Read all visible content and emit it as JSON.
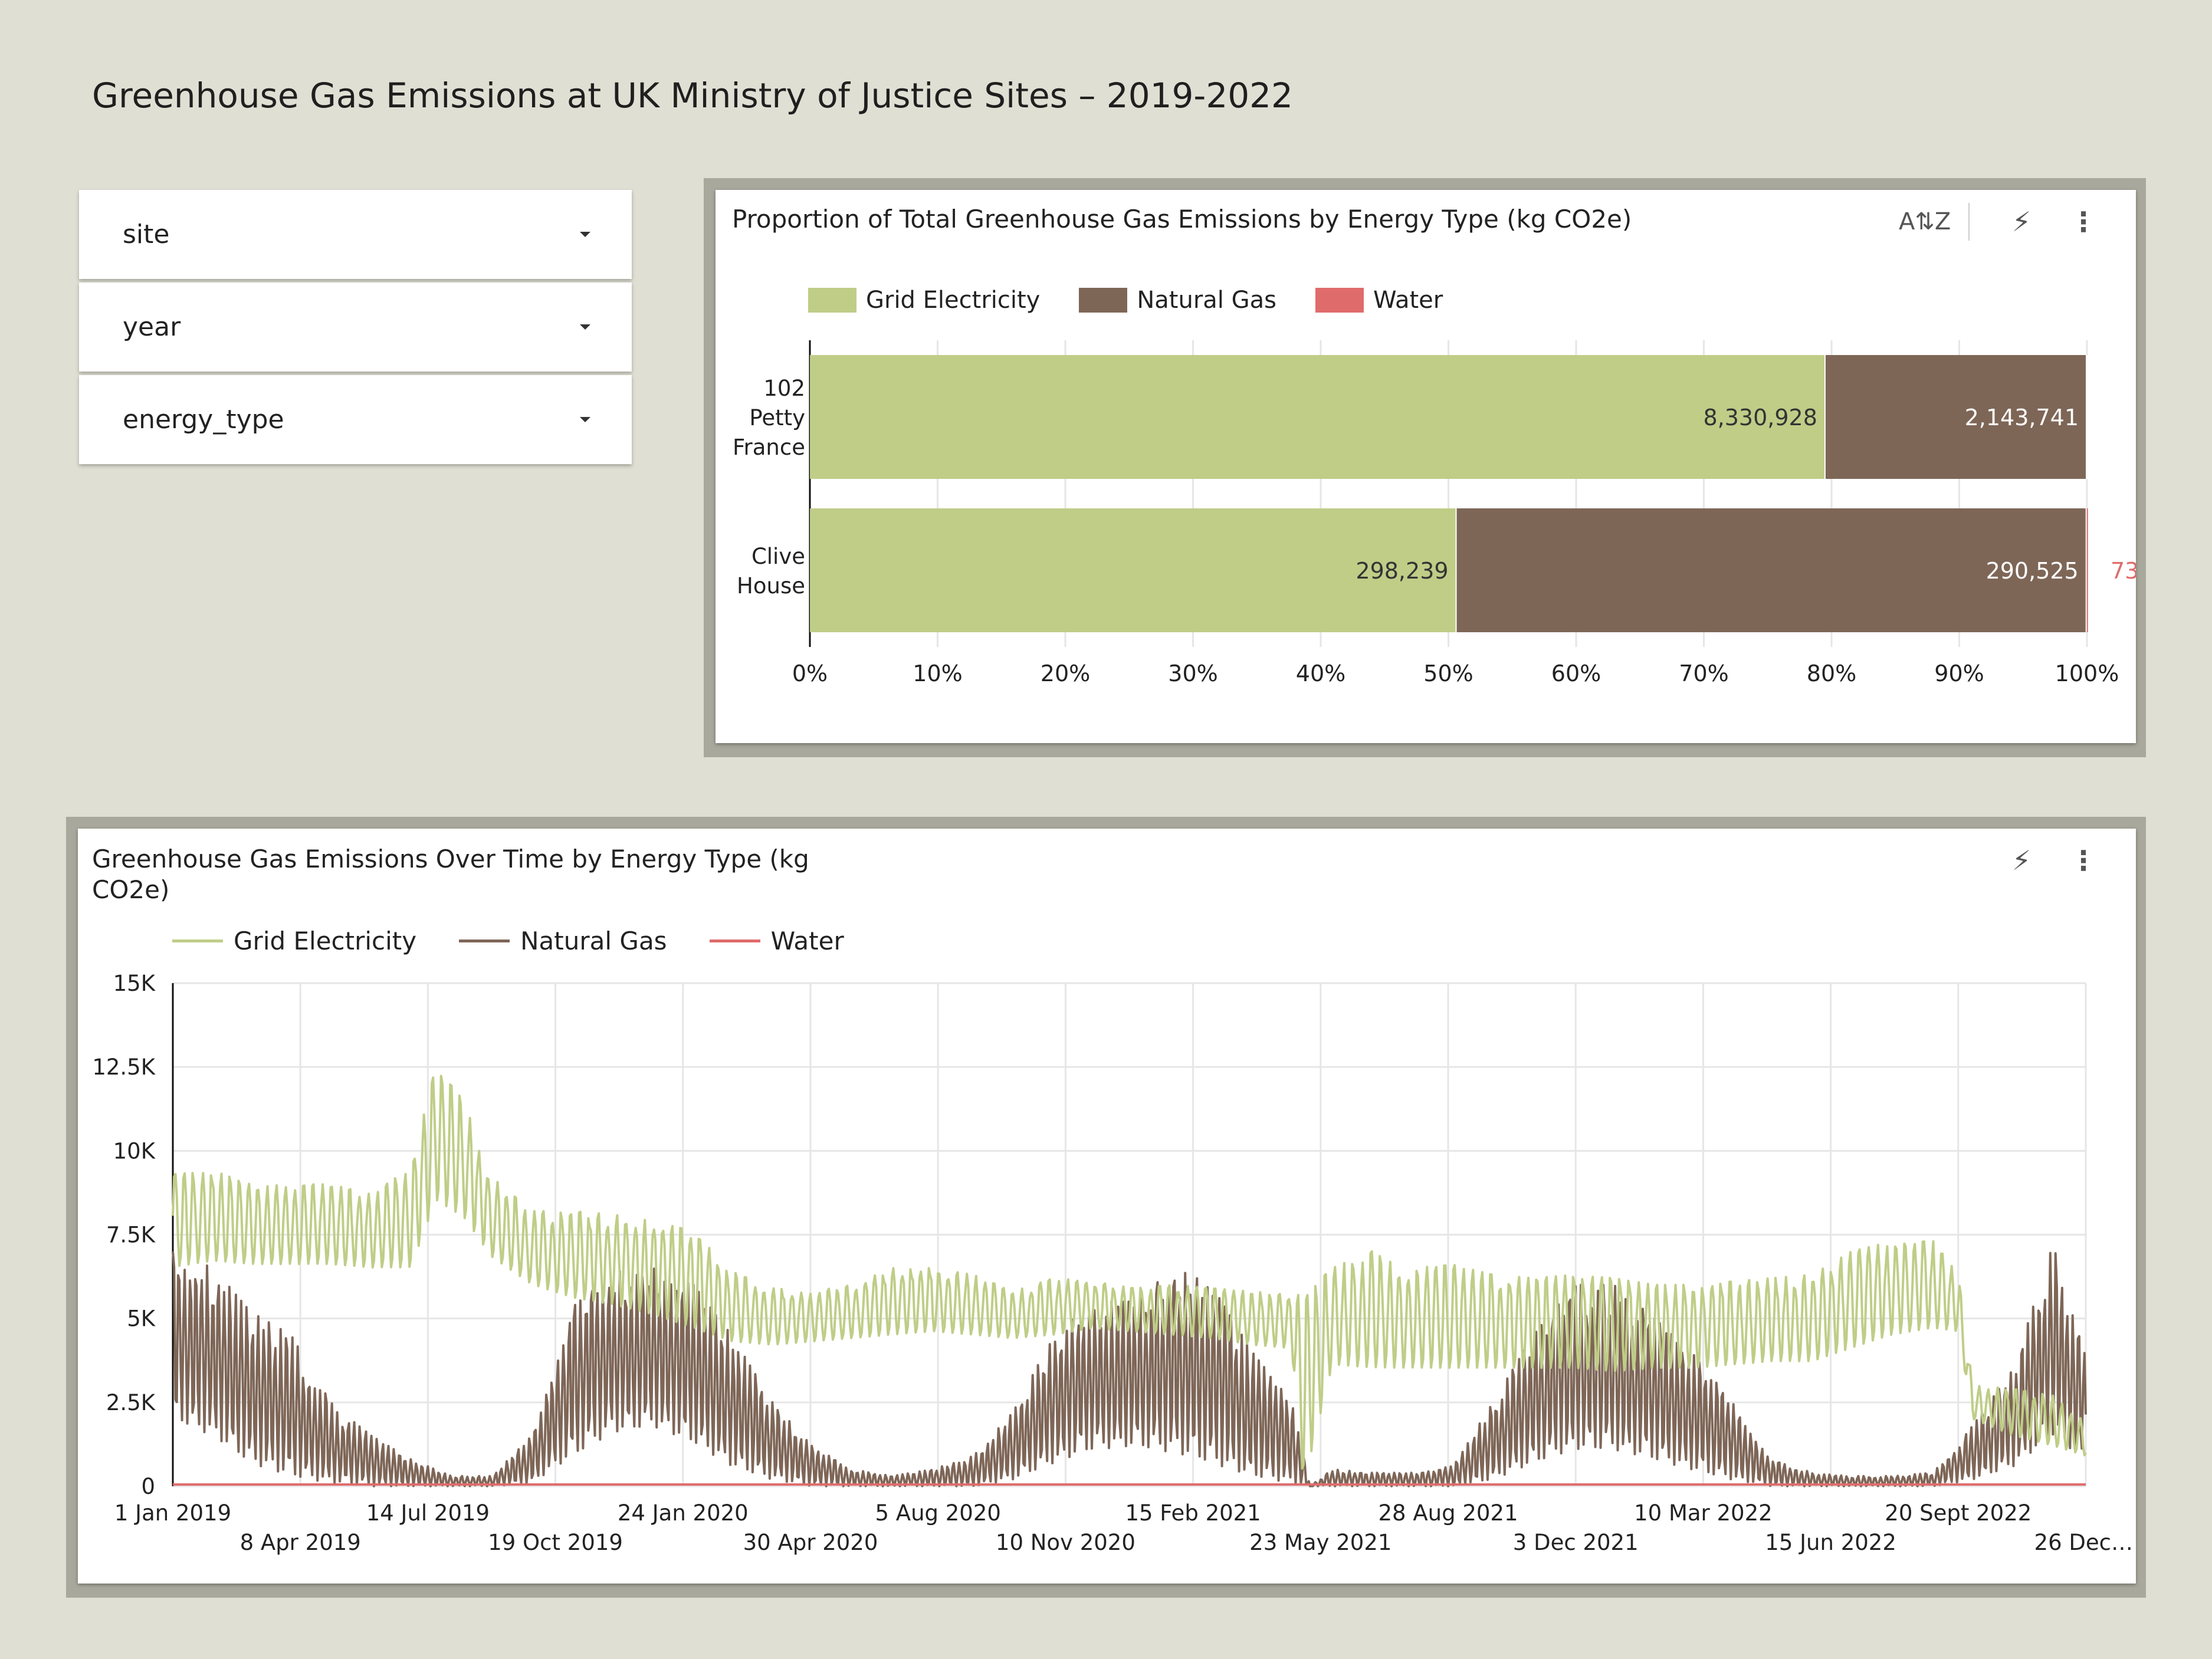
{
  "page": {
    "title": "Greenhouse Gas Emissions at UK Ministry of Justice Sites – 2019-2022"
  },
  "filters": [
    {
      "label": "site"
    },
    {
      "label": "year"
    },
    {
      "label": "energy_type"
    }
  ],
  "colors": {
    "grid_electricity": "#bfcd87",
    "natural_gas": "#7e6657",
    "water": "#e06b6b",
    "background": "#dfdfd3"
  },
  "icons": {
    "sort": "sort-az-icon",
    "insight": "lightning-bolt-icon",
    "more": "more-vertical-icon"
  },
  "chart_data": [
    {
      "type": "bar",
      "orientation": "horizontal",
      "stacked": "percent",
      "title": "Proportion of Total Greenhouse Gas Emissions by Energy Type (kg CO2e)",
      "categories": [
        "102 Petty France",
        "Clive House"
      ],
      "category_lines": [
        [
          "102",
          "Petty",
          "France"
        ],
        [
          "Clive",
          "House"
        ]
      ],
      "series": [
        {
          "name": "Grid Electricity",
          "values": [
            8330928,
            298239
          ],
          "labels": [
            "8,330,928",
            "298,239"
          ]
        },
        {
          "name": "Natural Gas",
          "values": [
            2143741,
            290525
          ],
          "labels": [
            "2,143,741",
            "290,525"
          ]
        },
        {
          "name": "Water",
          "values": [
            0,
            73
          ],
          "labels": [
            "",
            "73"
          ]
        }
      ],
      "x_ticks": [
        "0%",
        "10%",
        "20%",
        "30%",
        "40%",
        "50%",
        "60%",
        "70%",
        "80%",
        "90%",
        "100%"
      ],
      "xlim": [
        0,
        100
      ],
      "grid": true,
      "legend": "top-left"
    },
    {
      "type": "line",
      "title": "Greenhouse Gas Emissions Over Time by Energy Type (kg CO2e)",
      "title_lines": [
        "Greenhouse Gas Emissions Over Time by Energy Type (kg",
        "CO2e)"
      ],
      "x_range": [
        "2019-01-01",
        "2022-12-26"
      ],
      "x_tick_labels": [
        "1 Jan 2019",
        "8 Apr 2019",
        "14 Jul 2019",
        "19 Oct 2019",
        "24 Jan 2020",
        "30 Apr 2020",
        "5 Aug 2020",
        "10 Nov 2020",
        "15 Feb 2021",
        "23 May 2021",
        "28 Aug 2021",
        "3 Dec 2021",
        "10 Mar 2022",
        "15 Jun 2022",
        "20 Sept 2022",
        "26 Dec…"
      ],
      "y_ticks": [
        0,
        2500,
        5000,
        7500,
        10000,
        12500,
        15000
      ],
      "y_tick_labels": [
        "0",
        "2.5K",
        "5K",
        "7.5K",
        "10K",
        "12.5K",
        "15K"
      ],
      "ylim": [
        0,
        15000
      ],
      "grid": true,
      "legend": "top-left",
      "series": [
        {
          "name": "Grid Electricity",
          "envelope": {
            "x": [
              "2019-01-01",
              "2019-02-01",
              "2019-03-01",
              "2019-04-01",
              "2019-05-01",
              "2019-06-01",
              "2019-07-01",
              "2019-07-20",
              "2019-08-10",
              "2019-09-01",
              "2019-10-01",
              "2019-11-01",
              "2019-12-01",
              "2020-01-01",
              "2020-02-01",
              "2020-03-01",
              "2020-04-01",
              "2020-05-01",
              "2020-06-01",
              "2020-07-01",
              "2020-08-01",
              "2020-09-01",
              "2020-10-01",
              "2020-11-01",
              "2020-12-01",
              "2021-01-01",
              "2021-02-01",
              "2021-03-01",
              "2021-04-01",
              "2021-05-01",
              "2021-05-10",
              "2021-06-01",
              "2021-07-01",
              "2021-08-01",
              "2021-09-01",
              "2021-10-01",
              "2021-11-01",
              "2021-12-01",
              "2022-01-01",
              "2022-02-01",
              "2022-03-01",
              "2022-04-01",
              "2022-05-01",
              "2022-06-01",
              "2022-07-01",
              "2022-08-01",
              "2022-09-01",
              "2022-09-20",
              "2022-10-01",
              "2022-11-01",
              "2022-12-01",
              "2022-12-26"
            ],
            "high": [
              9300,
              9400,
              9000,
              9000,
              9000,
              8700,
              9500,
              12500,
              11500,
              9200,
              8200,
              8200,
              8100,
              7900,
              7600,
              6400,
              5900,
              5800,
              6000,
              6500,
              6500,
              6300,
              5800,
              6200,
              6100,
              5900,
              6000,
              5900,
              5800,
              5700,
              5700,
              6500,
              7000,
              6500,
              6600,
              6300,
              6200,
              6300,
              6200,
              6000,
              6000,
              6100,
              6200,
              6300,
              7000,
              7300,
              7300,
              6300,
              3000,
              2900,
              2700,
              1900
            ],
            "low": [
              6500,
              6700,
              6600,
              6600,
              6600,
              6500,
              6500,
              8500,
              8000,
              6800,
              6000,
              5600,
              5400,
              5100,
              4700,
              4300,
              4200,
              4300,
              4400,
              4500,
              4600,
              4500,
              4400,
              4500,
              4700,
              4600,
              4500,
              4400,
              4200,
              4100,
              0,
              3600,
              3500,
              3500,
              3500,
              3500,
              3500,
              3500,
              3400,
              3500,
              3500,
              3600,
              3700,
              3700,
              4100,
              4500,
              4700,
              4600,
              2000,
              1500,
              1200,
              900
            ]
          }
        },
        {
          "name": "Natural Gas",
          "envelope": {
            "x": [
              "2019-01-01",
              "2019-02-01",
              "2019-03-01",
              "2019-04-01",
              "2019-05-01",
              "2019-06-01",
              "2019-07-01",
              "2019-08-01",
              "2019-09-01",
              "2019-10-01",
              "2019-11-01",
              "2019-12-01",
              "2020-01-01",
              "2020-02-01",
              "2020-03-01",
              "2020-04-01",
              "2020-05-01",
              "2020-06-01",
              "2020-07-01",
              "2020-08-01",
              "2020-09-01",
              "2020-10-01",
              "2020-11-01",
              "2020-12-01",
              "2021-01-01",
              "2021-02-01",
              "2021-03-01",
              "2021-04-01",
              "2021-05-01",
              "2021-05-15",
              "2021-06-01",
              "2021-07-01",
              "2021-08-01",
              "2021-09-01",
              "2021-10-01",
              "2021-11-01",
              "2021-12-01",
              "2022-01-01",
              "2022-02-01",
              "2022-03-01",
              "2022-04-01",
              "2022-05-01",
              "2022-06-01",
              "2022-07-01",
              "2022-08-01",
              "2022-09-01",
              "2022-10-01",
              "2022-11-01",
              "2022-12-01",
              "2022-12-26"
            ],
            "high": [
              7000,
              6500,
              5200,
              4500,
              2500,
              1500,
              800,
              300,
              300,
              1500,
              5500,
              6500,
              6500,
              6000,
              4500,
              2500,
              1200,
              500,
              300,
              500,
              900,
              2200,
              4500,
              5500,
              5500,
              6500,
              6000,
              4000,
              2500,
              0,
              500,
              400,
              400,
              600,
              2500,
              4500,
              6000,
              6000,
              5000,
              4000,
              2500,
              800,
              400,
              300,
              300,
              400,
              1800,
              3500,
              7200,
              4000
            ],
            "low": [
              2000,
              1500,
              700,
              300,
              100,
              0,
              0,
              0,
              0,
              100,
              900,
              1600,
              1800,
              1300,
              600,
              200,
              0,
              0,
              0,
              0,
              0,
              200,
              700,
              1100,
              1200,
              1000,
              700,
              300,
              100,
              0,
              0,
              0,
              0,
              0,
              200,
              700,
              1100,
              1100,
              800,
              500,
              200,
              0,
              0,
              0,
              0,
              0,
              200,
              600,
              1500,
              800
            ]
          }
        },
        {
          "name": "Water",
          "constant": 50
        }
      ]
    }
  ]
}
